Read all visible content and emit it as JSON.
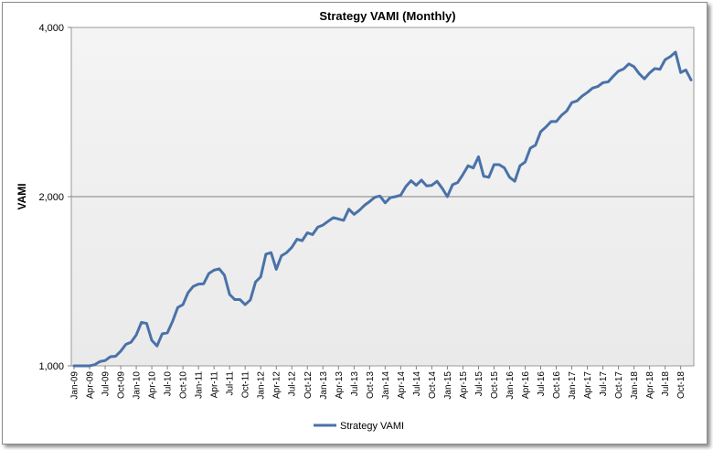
{
  "chart_data": {
    "type": "line",
    "title": "Strategy VAMI (Monthly)",
    "xlabel": "",
    "ylabel": "VAMI",
    "y_scale": "log",
    "ylim": [
      1000,
      4000
    ],
    "yticks": [
      1000,
      2000,
      4000
    ],
    "ytick_labels": [
      "1,000",
      "2,000",
      "4,000"
    ],
    "grid": "horizontal",
    "legend": "bottom",
    "series_color": "#4a72a8",
    "xtick_labels": [
      "Jan-09",
      "Apr-09",
      "Jul-09",
      "Oct-09",
      "Jan-10",
      "Apr-10",
      "Jul-10",
      "Oct-10",
      "Jan-11",
      "Apr-11",
      "Jul-11",
      "Oct-11",
      "Jan-12",
      "Apr-12",
      "Jul-12",
      "Oct-12",
      "Jan-13",
      "Apr-13",
      "Jul-13",
      "Oct-13",
      "Jan-14",
      "Apr-14",
      "Jul-14",
      "Oct-14",
      "Jan-15",
      "Apr-15",
      "Jul-15",
      "Oct-15",
      "Jan-16",
      "Apr-16",
      "Jul-16",
      "Oct-16",
      "Jan-17",
      "Apr-17",
      "Jul-17",
      "Oct-17",
      "Jan-18",
      "Apr-18",
      "Jul-18",
      "Oct-18"
    ],
    "series": [
      {
        "name": "Strategy VAMI",
        "x": [
          "Jan-09",
          "Feb-09",
          "Mar-09",
          "Apr-09",
          "May-09",
          "Jun-09",
          "Jul-09",
          "Aug-09",
          "Sep-09",
          "Oct-09",
          "Nov-09",
          "Dec-09",
          "Jan-10",
          "Feb-10",
          "Mar-10",
          "Apr-10",
          "May-10",
          "Jun-10",
          "Jul-10",
          "Aug-10",
          "Sep-10",
          "Oct-10",
          "Nov-10",
          "Dec-10",
          "Jan-11",
          "Feb-11",
          "Mar-11",
          "Apr-11",
          "May-11",
          "Jun-11",
          "Jul-11",
          "Aug-11",
          "Sep-11",
          "Oct-11",
          "Nov-11",
          "Dec-11",
          "Jan-12",
          "Feb-12",
          "Mar-12",
          "Apr-12",
          "May-12",
          "Jun-12",
          "Jul-12",
          "Aug-12",
          "Sep-12",
          "Oct-12",
          "Nov-12",
          "Dec-12",
          "Jan-13",
          "Feb-13",
          "Mar-13",
          "Apr-13",
          "May-13",
          "Jun-13",
          "Jul-13",
          "Aug-13",
          "Sep-13",
          "Oct-13",
          "Nov-13",
          "Dec-13",
          "Jan-14",
          "Feb-14",
          "Mar-14",
          "Apr-14",
          "May-14",
          "Jun-14",
          "Jul-14",
          "Aug-14",
          "Sep-14",
          "Oct-14",
          "Nov-14",
          "Dec-14",
          "Jan-15",
          "Feb-15",
          "Mar-15",
          "Apr-15",
          "May-15",
          "Jun-15",
          "Jul-15",
          "Aug-15",
          "Sep-15",
          "Oct-15",
          "Nov-15",
          "Dec-15",
          "Jan-16",
          "Feb-16",
          "Mar-16",
          "Apr-16",
          "May-16",
          "Jun-16",
          "Jul-16",
          "Aug-16",
          "Sep-16",
          "Oct-16",
          "Nov-16",
          "Dec-16",
          "Jan-17",
          "Feb-17",
          "Mar-17",
          "Apr-17",
          "May-17",
          "Jun-17",
          "Jul-17",
          "Aug-17",
          "Sep-17",
          "Oct-17",
          "Nov-17",
          "Dec-17",
          "Jan-18",
          "Feb-18",
          "Mar-18",
          "Apr-18",
          "May-18",
          "Jun-18",
          "Jul-18",
          "Aug-18",
          "Sep-18",
          "Oct-18",
          "Nov-18",
          "Dec-18"
        ],
        "values": [
          1000,
          1000,
          1000,
          1000,
          1005,
          1018,
          1022,
          1038,
          1040,
          1062,
          1092,
          1102,
          1135,
          1195,
          1190,
          1110,
          1085,
          1140,
          1145,
          1200,
          1270,
          1285,
          1350,
          1385,
          1398,
          1400,
          1460,
          1480,
          1488,
          1450,
          1340,
          1312,
          1312,
          1285,
          1310,
          1410,
          1440,
          1580,
          1590,
          1485,
          1570,
          1590,
          1625,
          1680,
          1670,
          1725,
          1712,
          1765,
          1780,
          1808,
          1835,
          1825,
          1815,
          1900,
          1860,
          1890,
          1930,
          1960,
          1995,
          2005,
          1950,
          1992,
          2000,
          2012,
          2085,
          2135,
          2095,
          2140,
          2090,
          2095,
          2130,
          2070,
          2000,
          2100,
          2120,
          2190,
          2270,
          2250,
          2355,
          2175,
          2165,
          2280,
          2280,
          2250,
          2165,
          2130,
          2270,
          2305,
          2440,
          2470,
          2610,
          2660,
          2720,
          2720,
          2790,
          2840,
          2940,
          2960,
          3020,
          3065,
          3120,
          3140,
          3190,
          3200,
          3275,
          3345,
          3375,
          3445,
          3405,
          3310,
          3240,
          3320,
          3380,
          3370,
          3505,
          3550,
          3615,
          3325,
          3360,
          3225
        ]
      }
    ]
  }
}
